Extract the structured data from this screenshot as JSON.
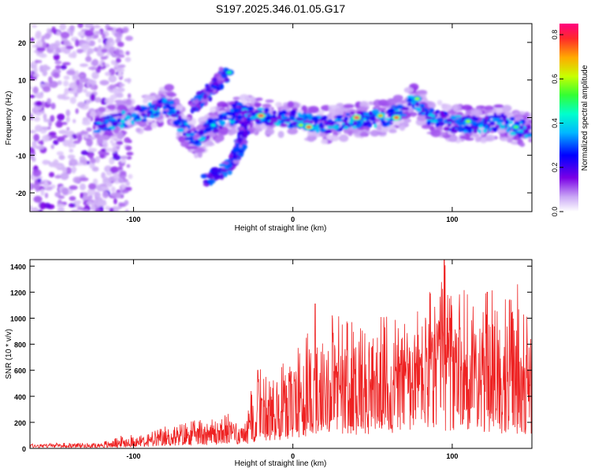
{
  "title": "S197.2025.346.01.05.G17",
  "chart_data": [
    {
      "type": "heatmap",
      "xlabel": "Height of straight line (km)",
      "ylabel": "Frequency (Hz)",
      "xlim": [
        -165,
        150
      ],
      "ylim": [
        -25,
        25
      ],
      "xticks": [
        -100,
        0,
        100
      ],
      "yticks": [
        -20,
        -10,
        0,
        10,
        20
      ],
      "colorbar": {
        "label": "Normalized spectral amplitude",
        "range": [
          0.0,
          0.85
        ],
        "ticks": [
          "0.0",
          "0.2",
          "0.4",
          "0.6",
          "0.8"
        ]
      },
      "ridge": [
        {
          "x": -123,
          "f": -2.0
        },
        {
          "x": -110,
          "f": -1.0
        },
        {
          "x": -95,
          "f": 1.0
        },
        {
          "x": -85,
          "f": 2.0
        },
        {
          "x": -78,
          "f": 4.0
        },
        {
          "x": -70,
          "f": -2.0
        },
        {
          "x": -60,
          "f": -6.0
        },
        {
          "x": -50,
          "f": -2.0
        },
        {
          "x": -35,
          "f": 1.0
        },
        {
          "x": -20,
          "f": 0.5
        },
        {
          "x": 0,
          "f": -0.5
        },
        {
          "x": 20,
          "f": -2.0
        },
        {
          "x": 40,
          "f": -0.5
        },
        {
          "x": 60,
          "f": 0.0
        },
        {
          "x": 70,
          "f": 2.0
        },
        {
          "x": 77,
          "f": 4.5
        },
        {
          "x": 85,
          "f": 0.5
        },
        {
          "x": 100,
          "f": -1.5
        },
        {
          "x": 115,
          "f": -2.0
        },
        {
          "x": 130,
          "f": -1.0
        },
        {
          "x": 150,
          "f": -4.0
        }
      ],
      "branch": [
        {
          "x": -55,
          "f": -17.0
        },
        {
          "x": -40,
          "f": -13.0
        },
        {
          "x": -33,
          "f": -8.0
        },
        {
          "x": -30,
          "f": -3.0
        },
        {
          "x": -35,
          "f": 3.0
        }
      ],
      "upper_branch": [
        {
          "x": -62,
          "f": 3.0
        },
        {
          "x": -50,
          "f": 8.0
        },
        {
          "x": -42,
          "f": 12.0
        }
      ],
      "hot_spots": [
        {
          "x": -20,
          "f": 0.5,
          "a": 0.85
        },
        {
          "x": 10,
          "f": -2.5,
          "a": 0.82
        },
        {
          "x": 40,
          "f": 0.0,
          "a": 0.85
        },
        {
          "x": 65,
          "f": 0.0,
          "a": 0.82
        },
        {
          "x": 78,
          "f": 5.0,
          "a": 0.6
        },
        {
          "x": -40,
          "f": 12.0,
          "a": 0.5
        },
        {
          "x": -50,
          "f": -2.0,
          "a": 0.45
        },
        {
          "x": 5,
          "f": -2.0,
          "a": 0.6
        },
        {
          "x": 55,
          "f": 0.5,
          "a": 0.7
        },
        {
          "x": 110,
          "f": -1.0,
          "a": 0.6
        },
        {
          "x": 140,
          "f": -2.5,
          "a": 0.55
        }
      ]
    },
    {
      "type": "line",
      "xlabel": "Height of straight line (km)",
      "ylabel": "SNR (10 * v/v)",
      "xlim": [
        -165,
        150
      ],
      "ylim": [
        0,
        1450
      ],
      "xticks": [
        -100,
        0,
        100
      ],
      "yticks": [
        0,
        200,
        400,
        600,
        800,
        1000,
        1200,
        1400
      ],
      "color": "#ee2222",
      "envelope": [
        {
          "x": -165,
          "base": 15,
          "peak": 40
        },
        {
          "x": -120,
          "base": 20,
          "peak": 45
        },
        {
          "x": -106,
          "base": 25,
          "peak": 110
        },
        {
          "x": -90,
          "base": 40,
          "peak": 120
        },
        {
          "x": -80,
          "base": 60,
          "peak": 170
        },
        {
          "x": -60,
          "base": 80,
          "peak": 220
        },
        {
          "x": -40,
          "base": 90,
          "peak": 270
        },
        {
          "x": -30,
          "base": 100,
          "peak": 200
        },
        {
          "x": -25,
          "base": 150,
          "peak": 550
        },
        {
          "x": -20,
          "base": 200,
          "peak": 620
        },
        {
          "x": -10,
          "base": 200,
          "peak": 700
        },
        {
          "x": 0,
          "base": 250,
          "peak": 800
        },
        {
          "x": 15,
          "base": 300,
          "peak": 1100
        },
        {
          "x": 40,
          "base": 350,
          "peak": 1000
        },
        {
          "x": 60,
          "base": 380,
          "peak": 1030
        },
        {
          "x": 80,
          "base": 400,
          "peak": 1100
        },
        {
          "x": 95,
          "base": 420,
          "peak": 1450
        },
        {
          "x": 110,
          "base": 400,
          "peak": 1200
        },
        {
          "x": 130,
          "base": 380,
          "peak": 1230
        },
        {
          "x": 150,
          "base": 350,
          "peak": 1000
        }
      ],
      "marked_peaks": [
        {
          "x": 95,
          "y": 1450
        },
        {
          "x": 141,
          "y": 1260
        },
        {
          "x": 14,
          "y": 1110
        },
        {
          "x": 122,
          "y": 1200
        },
        {
          "x": -22,
          "y": 600
        }
      ]
    }
  ]
}
